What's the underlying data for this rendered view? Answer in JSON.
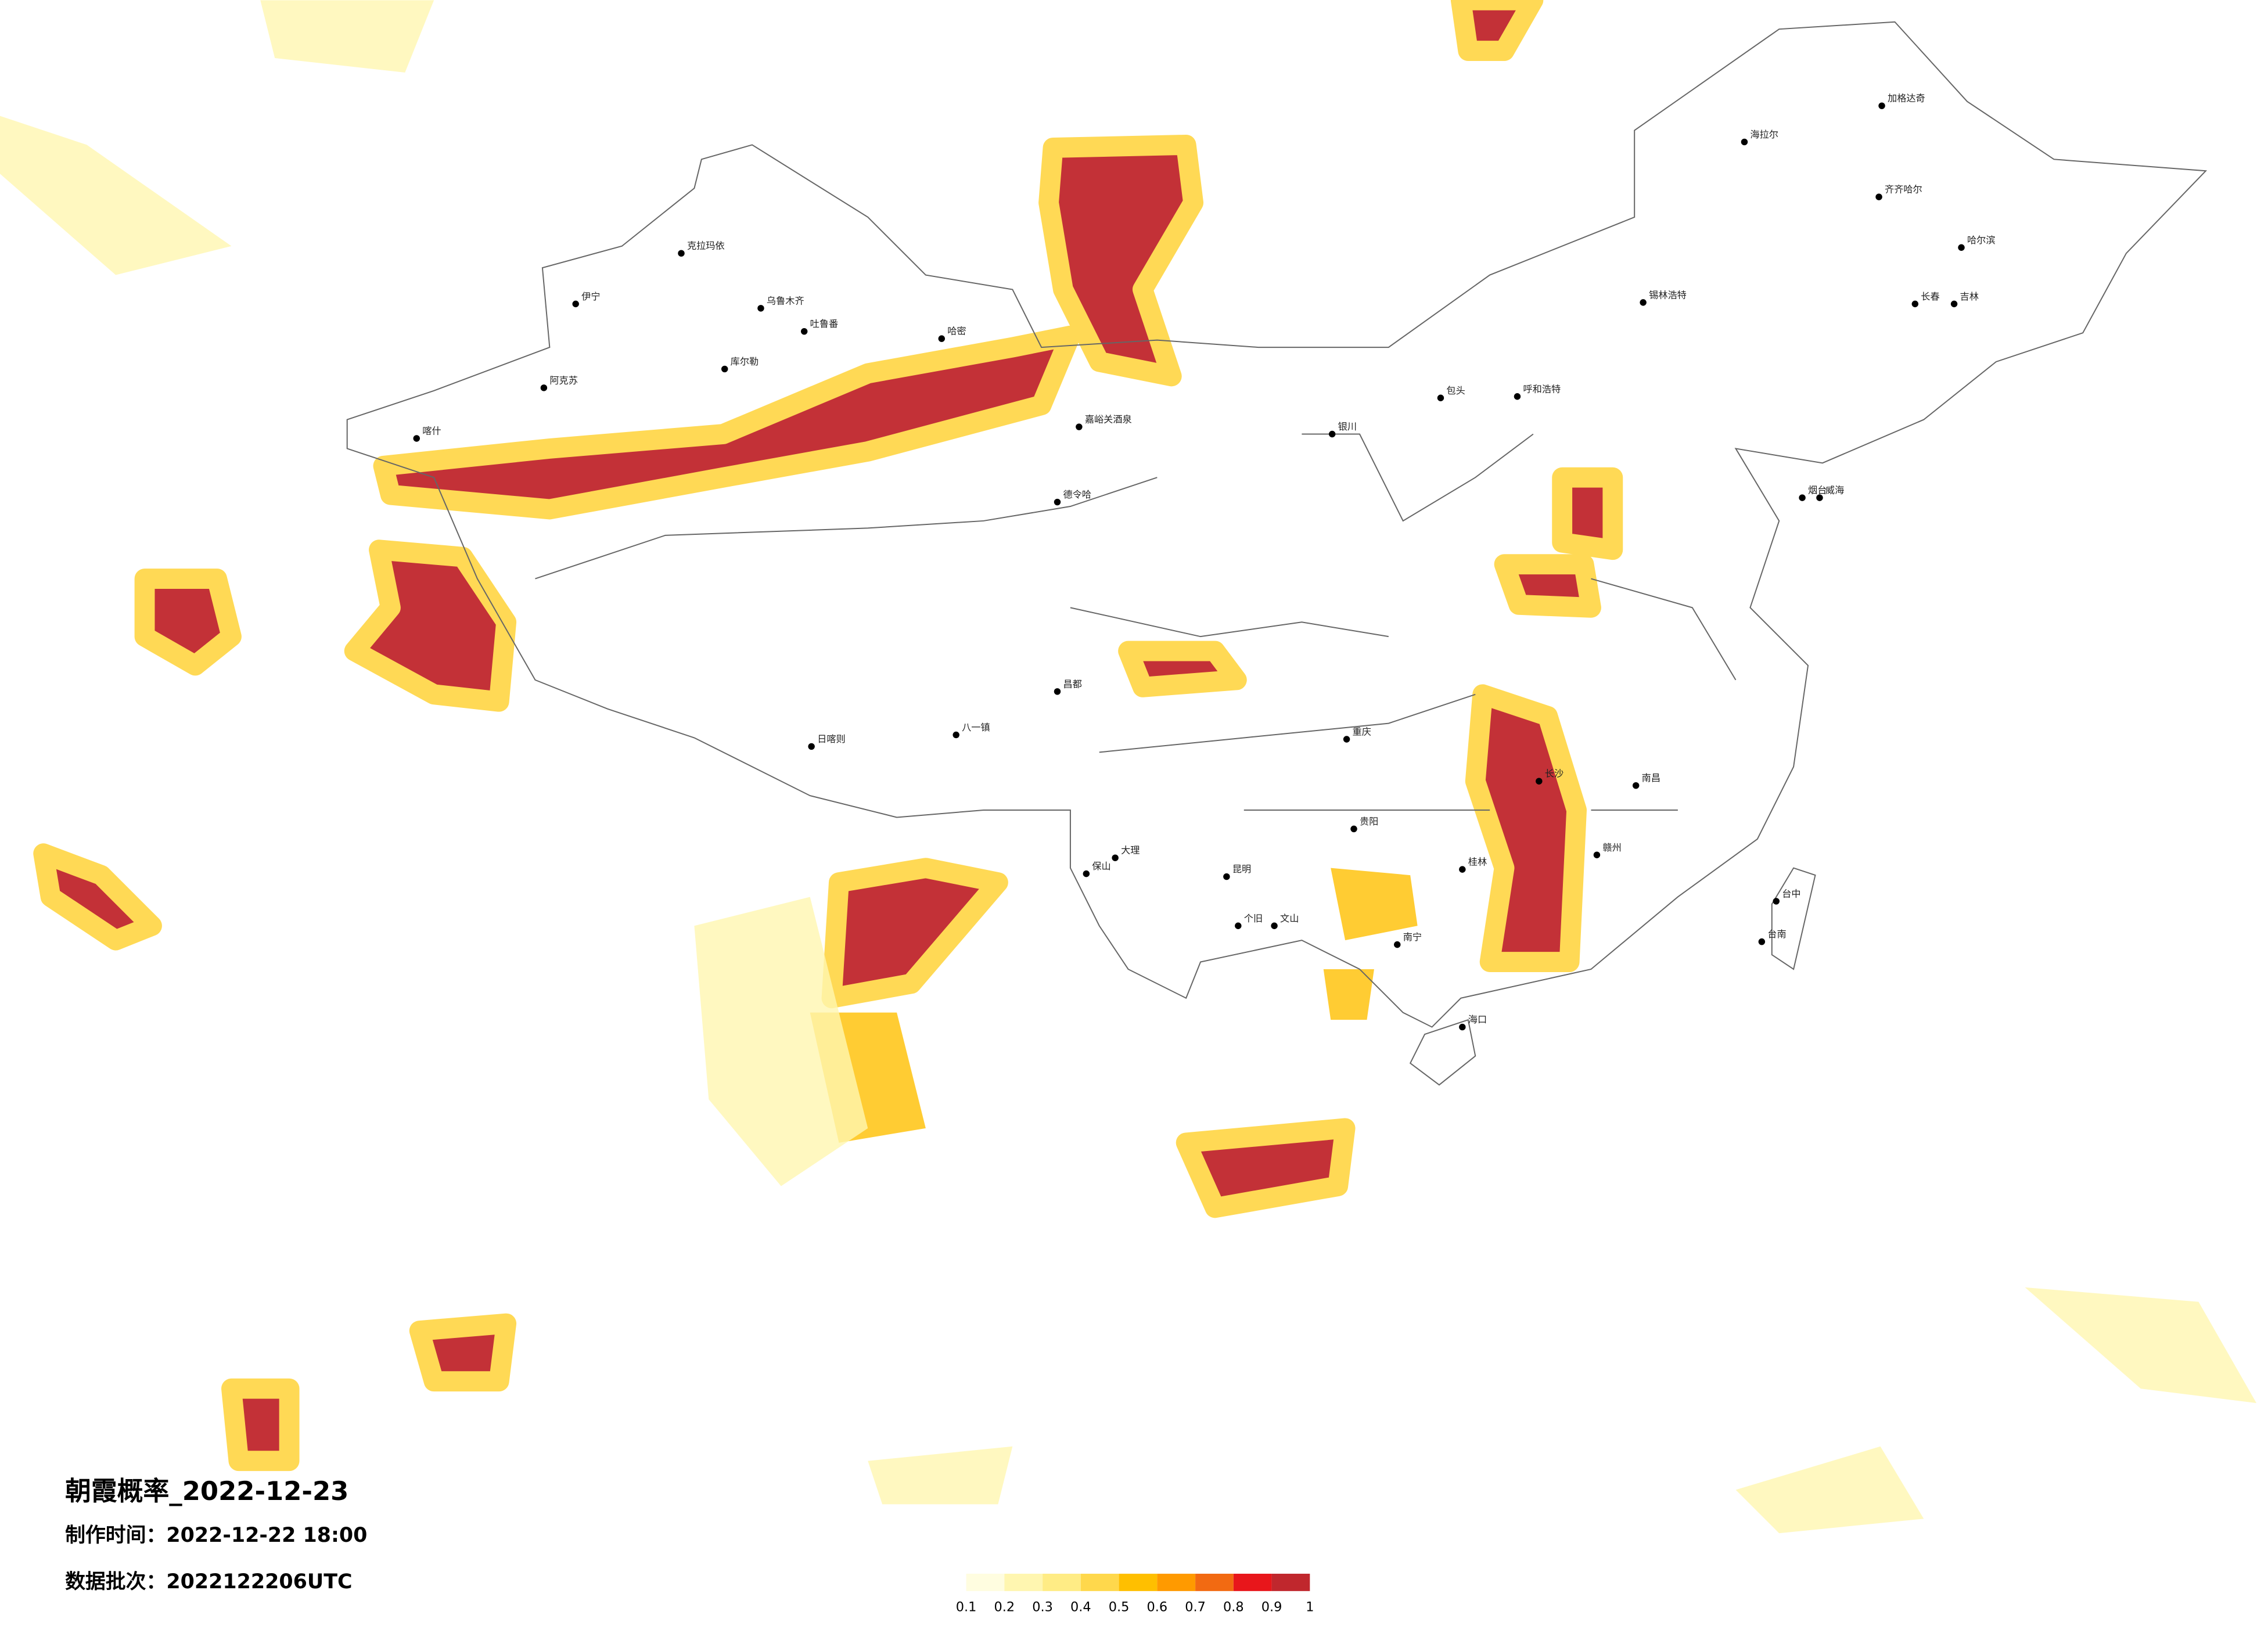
{
  "title": "朝霞概率_2022-12-23",
  "made_time": "制作时间：2022-12-22 18:00",
  "batch": "数据批次：2022122206UTC",
  "legend": {
    "ticks": [
      0.1,
      0.2,
      0.3,
      0.4,
      0.5,
      0.6,
      0.7,
      0.8,
      0.9,
      1
    ],
    "colors": [
      "#fffde0",
      "#fff6b0",
      "#ffec85",
      "#ffd84c",
      "#ffbf00",
      "#ff9a00",
      "#f26a12",
      "#e8161b",
      "#c0272d"
    ]
  },
  "cities": [
    "克拉玛依",
    "伊宁",
    "乌鲁木齐",
    "吐鲁番",
    "哈密",
    "库尔勒",
    "阿克苏",
    "喀什",
    "嘉峪关酒泉",
    "德令哈",
    "日喀则",
    "八一镇",
    "昌都",
    "海拉尔",
    "加格达奇",
    "齐齐哈尔",
    "哈尔滨",
    "锡林浩特",
    "长春",
    "吉林",
    "呼和浩特",
    "包头",
    "银川",
    "烟台",
    "威海",
    "重庆",
    "贵阳",
    "昆明",
    "南宁",
    "桂林",
    "长沙",
    "南昌",
    "赣州",
    "海口",
    "台中",
    "台南",
    "大理",
    "保山",
    "个旧",
    "文山"
  ]
}
